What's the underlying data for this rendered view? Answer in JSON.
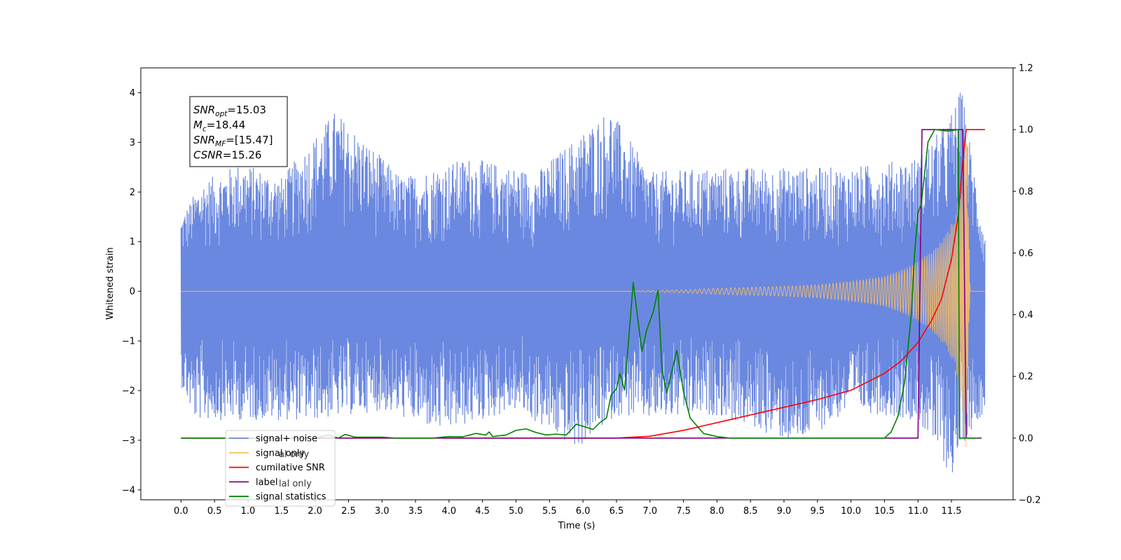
{
  "chart_data": {
    "type": "line",
    "xlabel": "Time (s)",
    "ylabel_left": "Whitened strain",
    "ylabel_right": "",
    "xlim": [
      -0.6,
      12.42
    ],
    "ylim_left": [
      -4.2,
      4.5
    ],
    "ylim_right": [
      -0.2,
      1.2
    ],
    "x_ticks": [
      "0.0",
      "0.5",
      "1.0",
      "1.5",
      "2.0",
      "2.5",
      "3.0",
      "3.5",
      "4.0",
      "4.5",
      "5.0",
      "5.5",
      "6.0",
      "6.5",
      "7.0",
      "7.5",
      "8.0",
      "8.5",
      "9.0",
      "9.5",
      "10.0",
      "10.5",
      "11.0",
      "11.5"
    ],
    "y_ticks_left": [
      "−4",
      "−3",
      "−2",
      "−1",
      "0",
      "1",
      "2",
      "3",
      "4"
    ],
    "y_ticks_right": [
      "−0.2",
      "0.0",
      "0.2",
      "0.4",
      "0.6",
      "0.8",
      "1.0",
      "1.2"
    ],
    "grid": false,
    "annotation": {
      "lines": [
        {
          "base": "SNR",
          "sub": "opt",
          "rest": "=15.03"
        },
        {
          "base": "M",
          "sub": "c",
          "rest": "=18.44"
        },
        {
          "base": "SNR",
          "sub": "MF",
          "rest": "=[15.47]"
        },
        {
          "base": "CSNR",
          "sub": "",
          "rest": "=15.26"
        }
      ]
    },
    "legend": {
      "placement": "lower-left",
      "entries": [
        {
          "label": "signal+ noise",
          "color": "#6b88e0"
        },
        {
          "label": "signal only",
          "color": "#ffbf5c"
        },
        {
          "label": "cumilative SNR",
          "color": "#ff0000"
        },
        {
          "label": "label",
          "color": "#800080"
        },
        {
          "label": "signal statistics",
          "color": "#008000"
        }
      ],
      "hidden_overlap_text": [
        "al only",
        "lal only"
      ]
    },
    "series": [
      {
        "name": "signal+ noise",
        "axis": "left",
        "color": "#6b88e0",
        "style": "noise band",
        "x_range": [
          0.0,
          12.0
        ],
        "upper_envelope": [
          [
            0.0,
            1.5
          ],
          [
            0.3,
            2.2
          ],
          [
            0.9,
            2.6
          ],
          [
            1.5,
            2.3
          ],
          [
            2.3,
            3.65
          ],
          [
            3.3,
            2.3
          ],
          [
            4.3,
            2.7
          ],
          [
            5.3,
            2.4
          ],
          [
            6.4,
            3.7
          ],
          [
            7.0,
            2.4
          ],
          [
            8.0,
            2.5
          ],
          [
            9.0,
            2.5
          ],
          [
            10.0,
            2.5
          ],
          [
            11.0,
            2.7
          ],
          [
            11.45,
            3.45
          ],
          [
            11.65,
            4.1
          ],
          [
            12.0,
            1.1
          ]
        ],
        "lower_envelope": [
          [
            0.0,
            -1.9
          ],
          [
            0.2,
            -2.6
          ],
          [
            1.0,
            -2.6
          ],
          [
            2.0,
            -2.6
          ],
          [
            3.0,
            -2.4
          ],
          [
            3.9,
            -2.85
          ],
          [
            5.0,
            -2.4
          ],
          [
            5.9,
            -3.2
          ],
          [
            6.5,
            -2.5
          ],
          [
            7.0,
            -2.6
          ],
          [
            8.0,
            -2.5
          ],
          [
            9.2,
            -3.1
          ],
          [
            10.0,
            -2.4
          ],
          [
            11.0,
            -2.6
          ],
          [
            11.5,
            -3.75
          ],
          [
            11.7,
            -3.0
          ],
          [
            12.0,
            -2.4
          ]
        ]
      },
      {
        "name": "signal only",
        "axis": "left",
        "color": "#ffbf5c",
        "style": "chirp",
        "envelope": [
          [
            0.0,
            0.0
          ],
          [
            6.5,
            0.0
          ],
          [
            7.5,
            0.03
          ],
          [
            8.0,
            0.06
          ],
          [
            8.5,
            0.08
          ],
          [
            9.0,
            0.1
          ],
          [
            9.5,
            0.13
          ],
          [
            10.0,
            0.2
          ],
          [
            10.5,
            0.3
          ],
          [
            10.8,
            0.45
          ],
          [
            11.0,
            0.6
          ],
          [
            11.2,
            0.8
          ],
          [
            11.4,
            1.1
          ],
          [
            11.55,
            1.5
          ],
          [
            11.65,
            2.2
          ],
          [
            11.72,
            3.2
          ],
          [
            11.78,
            0.0
          ],
          [
            12.0,
            0.0
          ]
        ]
      },
      {
        "name": "cumilative SNR",
        "axis": "right",
        "color": "#ff0000",
        "points": [
          [
            0.0,
            0.0
          ],
          [
            6.0,
            0.0
          ],
          [
            6.5,
            0.0
          ],
          [
            7.0,
            0.006
          ],
          [
            7.5,
            0.025
          ],
          [
            8.0,
            0.05
          ],
          [
            8.5,
            0.075
          ],
          [
            9.0,
            0.1
          ],
          [
            9.5,
            0.125
          ],
          [
            10.0,
            0.155
          ],
          [
            10.5,
            0.21
          ],
          [
            10.75,
            0.25
          ],
          [
            11.0,
            0.31
          ],
          [
            11.2,
            0.38
          ],
          [
            11.35,
            0.45
          ],
          [
            11.5,
            0.58
          ],
          [
            11.6,
            0.72
          ],
          [
            11.67,
            0.9
          ],
          [
            11.72,
            1.0
          ],
          [
            12.0,
            1.0
          ]
        ]
      },
      {
        "name": "label",
        "axis": "right",
        "color": "#800080",
        "points": [
          [
            0.0,
            0.0
          ],
          [
            11.0,
            0.0
          ],
          [
            11.06,
            1.0
          ],
          [
            11.67,
            1.0
          ],
          [
            11.72,
            0.0
          ],
          [
            11.95,
            0.0
          ]
        ]
      },
      {
        "name": "signal statistics",
        "axis": "right",
        "color": "#008000",
        "points": [
          [
            0.0,
            0.0
          ],
          [
            2.0,
            0.0
          ],
          [
            2.2,
            0.01
          ],
          [
            2.35,
            0.0
          ],
          [
            2.45,
            0.012
          ],
          [
            2.6,
            0.003
          ],
          [
            3.0,
            0.003
          ],
          [
            3.2,
            0.0
          ],
          [
            3.5,
            0.0
          ],
          [
            3.75,
            0.0
          ],
          [
            4.0,
            0.005
          ],
          [
            4.2,
            0.004
          ],
          [
            4.4,
            0.015
          ],
          [
            4.55,
            0.01
          ],
          [
            4.6,
            0.02
          ],
          [
            4.65,
            0.005
          ],
          [
            4.85,
            0.01
          ],
          [
            5.0,
            0.025
          ],
          [
            5.15,
            0.03
          ],
          [
            5.3,
            0.018
          ],
          [
            5.45,
            0.01
          ],
          [
            5.6,
            0.013
          ],
          [
            5.75,
            0.01
          ],
          [
            5.9,
            0.045
          ],
          [
            6.05,
            0.035
          ],
          [
            6.15,
            0.028
          ],
          [
            6.25,
            0.05
          ],
          [
            6.35,
            0.065
          ],
          [
            6.42,
            0.14
          ],
          [
            6.5,
            0.16
          ],
          [
            6.55,
            0.21
          ],
          [
            6.62,
            0.155
          ],
          [
            6.75,
            0.505
          ],
          [
            6.88,
            0.28
          ],
          [
            6.95,
            0.35
          ],
          [
            7.05,
            0.41
          ],
          [
            7.12,
            0.48
          ],
          [
            7.18,
            0.22
          ],
          [
            7.25,
            0.145
          ],
          [
            7.4,
            0.285
          ],
          [
            7.5,
            0.15
          ],
          [
            7.6,
            0.065
          ],
          [
            7.7,
            0.04
          ],
          [
            7.8,
            0.015
          ],
          [
            7.9,
            0.01
          ],
          [
            8.0,
            0.005
          ],
          [
            8.2,
            0.0
          ],
          [
            10.5,
            0.0
          ],
          [
            10.6,
            0.02
          ],
          [
            10.7,
            0.07
          ],
          [
            10.8,
            0.18
          ],
          [
            10.9,
            0.4
          ],
          [
            10.95,
            0.6
          ],
          [
            11.0,
            0.73
          ],
          [
            11.05,
            0.76
          ],
          [
            11.15,
            0.96
          ],
          [
            11.25,
            1.0
          ],
          [
            11.45,
            0.995
          ],
          [
            11.6,
            1.0
          ],
          [
            11.62,
            0.0
          ],
          [
            11.9,
            0.0
          ]
        ]
      }
    ]
  }
}
